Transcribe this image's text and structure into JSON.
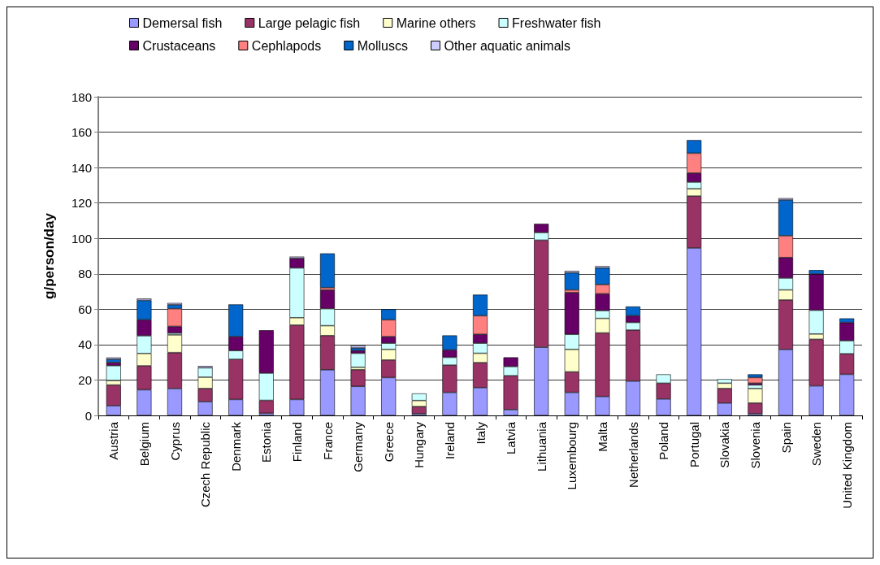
{
  "chart_data": {
    "type": "bar",
    "stacked": true,
    "ylabel": "g/person/day",
    "ylim": [
      0,
      180
    ],
    "yticks": [
      0,
      20,
      40,
      60,
      80,
      100,
      120,
      140,
      160,
      180
    ],
    "grid": "y",
    "legend": "top",
    "categories": [
      "Austria",
      "Belgium",
      "Cyprus",
      "Czech Republic",
      "Denmark",
      "Estonia",
      "Finland",
      "France",
      "Germany",
      "Greece",
      "Hungary",
      "Ireland",
      "Italy",
      "Latvia",
      "Lithuania",
      "Luxembourg",
      "Malta",
      "Netherlands",
      "Poland",
      "Portugal",
      "Slovakia",
      "Slovenia",
      "Spain",
      "Sweden",
      "United Kingdom"
    ],
    "series": [
      {
        "name": "Demersal fish",
        "color": "#9999ff",
        "values": [
          5.5,
          14.5,
          15.2,
          7.8,
          9,
          1.2,
          9,
          25.8,
          16.4,
          21.4,
          1,
          13,
          15.7,
          3.3,
          38.5,
          13,
          10.7,
          19.4,
          9.3,
          94.6,
          7,
          1,
          37.3,
          16.7,
          23.2
        ]
      },
      {
        "name": "Large pelagic fish",
        "color": "#993366",
        "values": [
          11.7,
          13.5,
          20.3,
          7.4,
          22.7,
          7.3,
          42,
          19.3,
          9.4,
          9.9,
          4,
          15.4,
          14.1,
          19.1,
          60.5,
          11.6,
          35.9,
          28.8,
          8.9,
          29.3,
          8.2,
          6,
          27.9,
          26.3,
          11.6
        ]
      },
      {
        "name": "Marine others",
        "color": "#ffffcc",
        "values": [
          2.5,
          7,
          10,
          6.4,
          null,
          null,
          4.2,
          5.6,
          1.4,
          6,
          3.4,
          null,
          5.3,
          null,
          null,
          12.7,
          8.2,
          null,
          null,
          4.1,
          3,
          8.2,
          5.7,
          3,
          null
        ]
      },
      {
        "name": "Freshwater fish",
        "color": "#ccffff",
        "values": [
          8.4,
          10,
          1,
          5.3,
          4.9,
          15.4,
          28.1,
          9.6,
          7.9,
          3.5,
          4,
          4.4,
          5.7,
          5.2,
          4.3,
          8.5,
          4.4,
          4.3,
          5,
          3.8,
          2.3,
          2,
          6.7,
          13.4,
          7.4
        ]
      },
      {
        "name": "Crustaceans",
        "color": "#660066",
        "values": [
          1.8,
          9,
          3.8,
          null,
          7.9,
          24.2,
          5.4,
          10.5,
          1.5,
          3.7,
          null,
          4.2,
          5,
          5.2,
          4.9,
          23.6,
          9.5,
          3.8,
          null,
          5.1,
          null,
          1,
          11.6,
          20.5,
          10.3
        ]
      },
      {
        "name": "Cephlapods",
        "color": "#ff8080",
        "values": [
          null,
          null,
          10,
          null,
          null,
          null,
          null,
          1.4,
          null,
          9.5,
          null,
          null,
          10.5,
          null,
          null,
          1.5,
          5.2,
          null,
          null,
          11.2,
          null,
          3.2,
          12.3,
          null,
          null
        ]
      },
      {
        "name": "Molluscs",
        "color": "#0066cc",
        "values": [
          1.8,
          11,
          2.2,
          null,
          18.2,
          null,
          null,
          19.3,
          1.5,
          6,
          null,
          8.2,
          11.9,
          null,
          null,
          9.7,
          9.4,
          5.2,
          null,
          7.4,
          null,
          1.8,
          20.2,
          2.2,
          2.3
        ]
      },
      {
        "name": "Other aquatic animals",
        "color": "#ccccff",
        "values": [
          1,
          1,
          1,
          1,
          null,
          null,
          1,
          null,
          1.4,
          null,
          null,
          null,
          null,
          null,
          null,
          1,
          1,
          null,
          null,
          null,
          null,
          null,
          1,
          null,
          null
        ]
      }
    ]
  }
}
